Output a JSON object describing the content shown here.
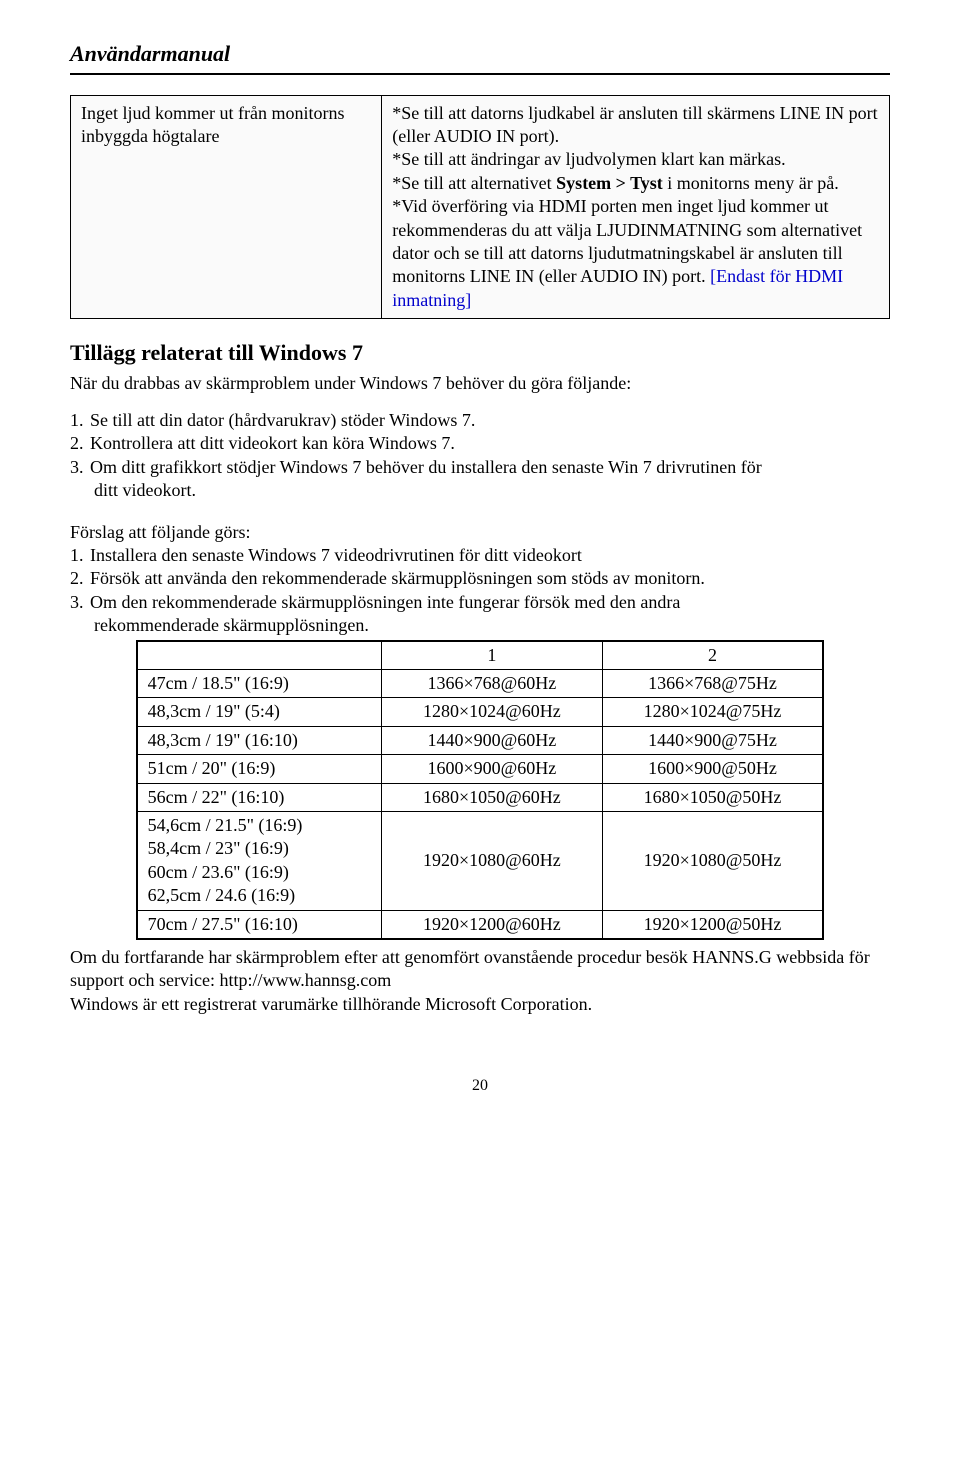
{
  "doc": {
    "title": "Användarmanual"
  },
  "trouble": {
    "issue": "Inget ljud kommer ut från monitorns inbyggda högtalare",
    "b1": "*Se till att datorns ljudkabel är ansluten till skärmens LINE IN port (eller AUDIO IN port).",
    "b2": "*Se till att ändringar av ljudvolymen klart kan märkas.",
    "b3a": "*Se till att alternativet ",
    "b3b": "System > Tyst",
    "b3c": " i monitorns meny är på.",
    "b4a": "*Vid överföring via HDMI porten men inget ljud kommer ut rekommenderas du att välja LJUDINMATNING som alternativet dator och se till att datorns ljudutmatningskabel är ansluten till monitorns LINE IN (eller AUDIO IN) port. ",
    "b4b": "[Endast för HDMI inmatning]"
  },
  "addendum": {
    "title": "Tillägg relaterat till Windows 7",
    "sub": "När du drabbas av skärmproblem under Windows 7 behöver du göra följande:",
    "l1": "Se till att din dator (hårdvarukrav) stöder Windows 7.",
    "l2": "Kontrollera att ditt videokort kan köra Windows 7.",
    "l3": "Om ditt grafikkort stödjer Windows 7 behöver du installera den senaste Win 7 drivrutinen för",
    "l3b": "ditt videokort.",
    "suggest": "Förslag att följande görs:",
    "s1": "Installera den senaste Windows 7 videodrivrutinen för ditt videokort",
    "s2": "Försök att använda den rekommenderade skärmupplösningen som stöds av monitorn.",
    "s3": "Om den rekommenderade skärmupplösningen inte fungerar försök med den andra",
    "s3b": "rekommenderade skärmupplösningen."
  },
  "res": {
    "h1": "1",
    "h2": "2",
    "rows": [
      {
        "size": "47cm / 18.5\" (16:9)",
        "r1": "1366×768@60Hz",
        "r2": "1366×768@75Hz"
      },
      {
        "size": "48,3cm / 19\" (5:4)",
        "r1": "1280×1024@60Hz",
        "r2": "1280×1024@75Hz"
      },
      {
        "size": "48,3cm / 19\" (16:10)",
        "r1": "1440×900@60Hz",
        "r2": "1440×900@75Hz"
      },
      {
        "size": "51cm / 20\" (16:9)",
        "r1": "1600×900@60Hz",
        "r2": "1600×900@50Hz"
      },
      {
        "size": "56cm / 22\" (16:10)",
        "r1": "1680×1050@60Hz",
        "r2": "1680×1050@50Hz"
      },
      {
        "size": "54,6cm / 21.5\" (16:9)\n58,4cm / 23\" (16:9)\n60cm / 23.6\" (16:9)\n62,5cm / 24.6 (16:9)",
        "r1": "1920×1080@60Hz",
        "r2": "1920×1080@50Hz"
      },
      {
        "size": "70cm / 27.5\" (16:10)",
        "r1": "1920×1200@60Hz",
        "r2": "1920×1200@50Hz"
      }
    ]
  },
  "footer": {
    "p1": "Om du fortfarande har skärmproblem efter att genomfört ovanstående procedur besök HANNS.G webbsida för support och service: http://www.hannsg.com",
    "p2": "Windows är ett registrerat varumärke tillhörande Microsoft Corporation."
  },
  "page": "20"
}
